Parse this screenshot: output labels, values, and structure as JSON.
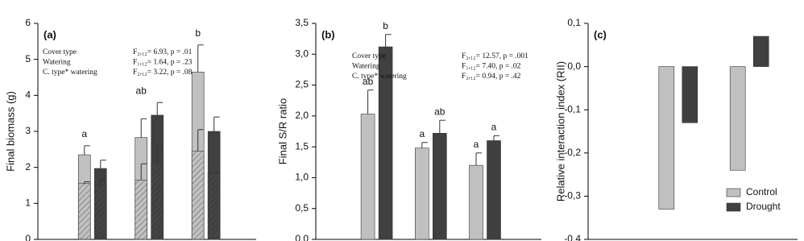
{
  "chart_data": [
    {
      "type": "bar",
      "title": "(a)",
      "ylabel": "Final biomass (g)",
      "categories": [
        null,
        null,
        null
      ],
      "ylim": [
        0,
        6
      ],
      "yticks": [
        0,
        1,
        2,
        3,
        4,
        5,
        6
      ],
      "series": [
        {
          "color": "#c0c0c0",
          "values": [
            2.35,
            2.83,
            4.65
          ],
          "errors": [
            0.25,
            0.52,
            0.75
          ],
          "inner_values": [
            1.55,
            1.65,
            2.45
          ],
          "inner_errors": [
            0.05,
            0.45,
            0.6
          ]
        },
        {
          "color": "#404040",
          "values": [
            1.97,
            3.45,
            3.0
          ],
          "errors": [
            0.23,
            0.35,
            0.4
          ],
          "inner_values": [
            1.5,
            2.15,
            1.85
          ],
          "inner_errors": [
            0.15,
            0.45,
            0.0
          ]
        }
      ],
      "group_letters": [
        "a",
        "ab",
        "b"
      ],
      "stats": [
        {
          "label": "Cover type",
          "value": "F₂,₁₂= 6.93, p = .01"
        },
        {
          "label": "Watering",
          "value": "F₁,₁₂= 1.64, p = .23"
        },
        {
          "label": "C. type* watering",
          "value": "F₂,₁₂= 3.22, p = .08"
        }
      ]
    },
    {
      "type": "bar",
      "title": "(b)",
      "ylabel": "Final  S/R ratio",
      "categories": [
        null,
        null,
        null
      ],
      "ylim": [
        0,
        3.5
      ],
      "yticks": [
        {
          "value": 0,
          "label": "0,0"
        },
        {
          "value": 0.5,
          "label": "0,5"
        },
        {
          "value": 1,
          "label": "1,0"
        },
        {
          "value": 1.5,
          "label": "1,5"
        },
        {
          "value": 2,
          "label": "2,0"
        },
        {
          "value": 2.5,
          "label": "2,5"
        },
        {
          "value": 3,
          "label": "3,0"
        },
        {
          "value": 3.5,
          "label": "3,5"
        }
      ],
      "series": [
        {
          "color": "#c0c0c0",
          "values": [
            2.03,
            1.48,
            1.2
          ],
          "errors": [
            0.39,
            0.09,
            0.2
          ],
          "letters": [
            "ab",
            "a",
            "a"
          ]
        },
        {
          "color": "#404040",
          "values": [
            3.12,
            1.72,
            1.6
          ],
          "errors": [
            0.2,
            0.21,
            0.08
          ],
          "letters": [
            "b",
            "ab",
            "a"
          ]
        }
      ],
      "stats": [
        {
          "label": "Cover type",
          "value": "F₂,₁₂= 12.57, p = .001"
        },
        {
          "label": "Watering",
          "value": "F₁,₁₂= 7.40, p = .02"
        },
        {
          "label": "C. type* watering",
          "value": "F₂,₁₂= 0.94, p = .42"
        }
      ]
    },
    {
      "type": "bar",
      "title": "(c)",
      "ylabel": "Relative interaction index (RII)",
      "categories": [
        null,
        null
      ],
      "ylim": [
        -0.4,
        0.1
      ],
      "yticks": [
        {
          "value": -0.4,
          "label": "-0,4"
        },
        {
          "value": -0.3,
          "label": "-0,3"
        },
        {
          "value": -0.2,
          "label": "-0,2"
        },
        {
          "value": -0.1,
          "label": "-0,1"
        },
        {
          "value": 0,
          "label": "0,0"
        },
        {
          "value": 0.1,
          "label": "0,1"
        }
      ],
      "legend": "lower right",
      "series": [
        {
          "name": "Control",
          "color": "#c0c0c0",
          "values": [
            -0.33,
            -0.24
          ]
        },
        {
          "name": "Drought",
          "color": "#404040",
          "values": [
            -0.13,
            0.07
          ]
        }
      ]
    }
  ]
}
